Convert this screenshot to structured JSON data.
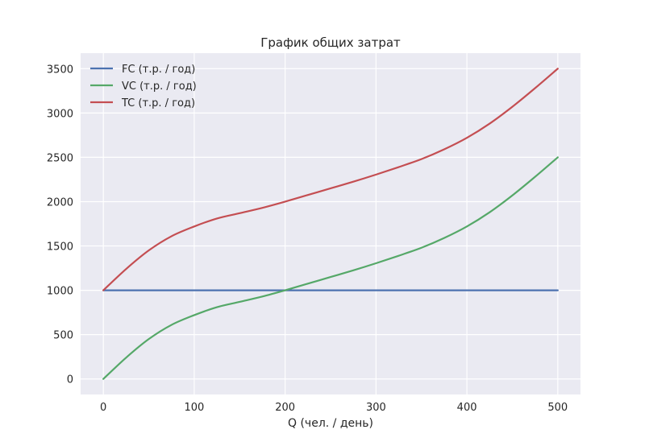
{
  "chart_data": {
    "type": "line",
    "title": "График общих затрат",
    "xlabel": "Q (чел. / день)",
    "ylabel": "",
    "xlim": [
      -25,
      525
    ],
    "ylim": [
      -175,
      3675
    ],
    "x_ticks": [
      0,
      100,
      200,
      300,
      400,
      500
    ],
    "y_ticks": [
      0,
      500,
      1000,
      1500,
      2000,
      2500,
      3000,
      3500
    ],
    "grid": true,
    "legend_position": "upper-left",
    "x": [
      0,
      25,
      50,
      75,
      100,
      125,
      150,
      175,
      200,
      225,
      250,
      275,
      300,
      325,
      350,
      375,
      400,
      425,
      450,
      475,
      500
    ],
    "series": [
      {
        "name": "FC (т.р. / год)",
        "color": "#4c72b0",
        "values": [
          1000,
          1000,
          1000,
          1000,
          1000,
          1000,
          1000,
          1000,
          1000,
          1000,
          1000,
          1000,
          1000,
          1000,
          1000,
          1000,
          1000,
          1000,
          1000,
          1000,
          1000
        ]
      },
      {
        "name": "VC (т.р. / год)",
        "color": "#55a868",
        "values": [
          0,
          240,
          450,
          610,
          720,
          810,
          870,
          930,
          1000,
          1075,
          1150,
          1225,
          1305,
          1390,
          1480,
          1590,
          1720,
          1880,
          2070,
          2280,
          2500
        ]
      },
      {
        "name": "TC (т.р. / год)",
        "color": "#c44e52",
        "values": [
          1000,
          1240,
          1450,
          1610,
          1720,
          1810,
          1870,
          1930,
          2000,
          2075,
          2150,
          2225,
          2305,
          2390,
          2480,
          2590,
          2720,
          2880,
          3070,
          3280,
          3500
        ]
      }
    ]
  }
}
